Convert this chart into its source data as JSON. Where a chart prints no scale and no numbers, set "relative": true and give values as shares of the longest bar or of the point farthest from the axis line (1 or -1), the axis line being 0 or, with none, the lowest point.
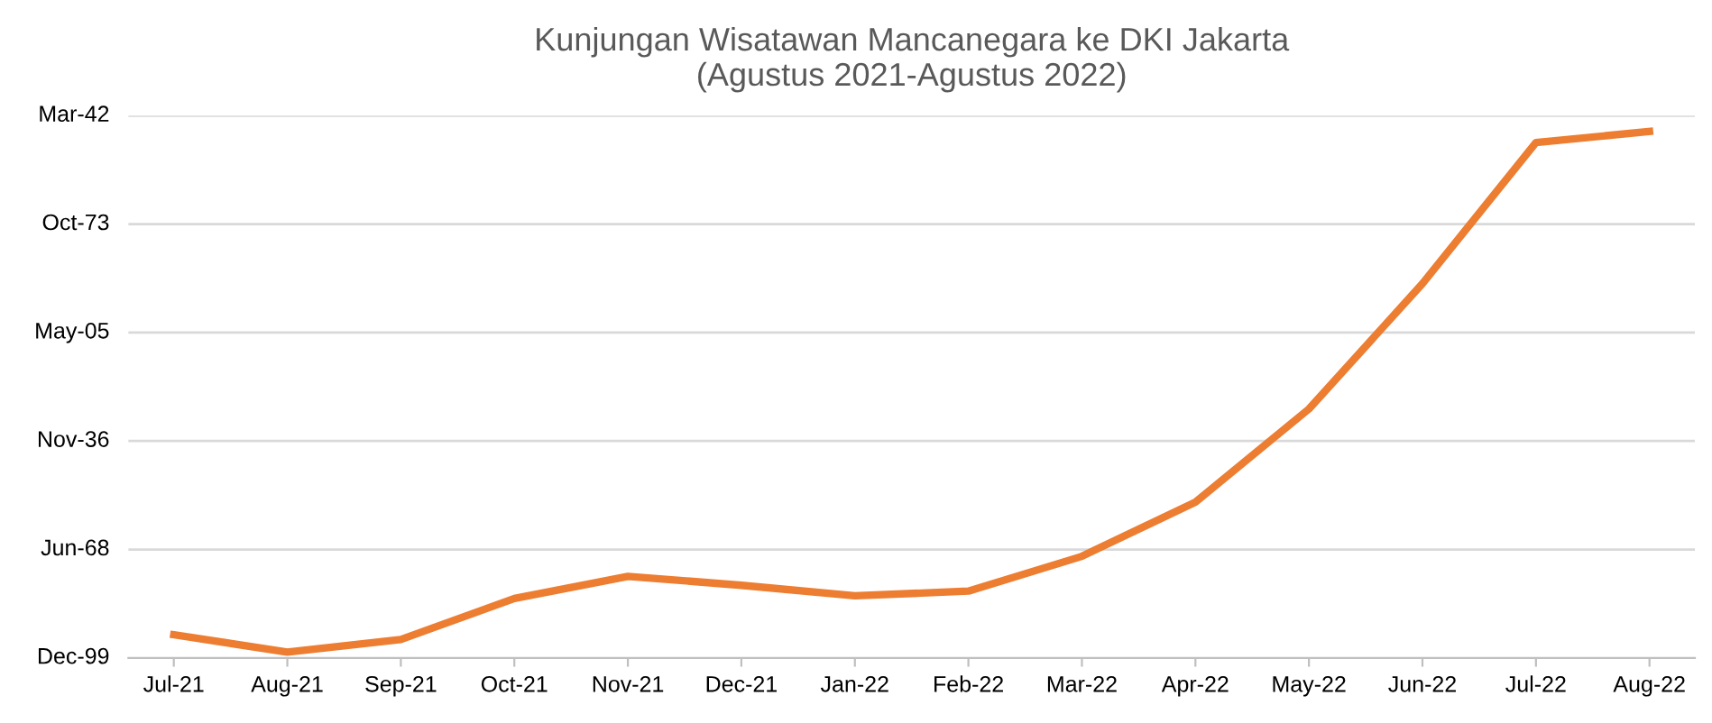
{
  "chart_data": {
    "type": "line",
    "title": "Kunjungan Wisatawan Mancanegara ke DKI Jakarta\n(Agustus 2021-Agustus 2022)",
    "categories": [
      "Jul-21",
      "Aug-21",
      "Sep-21",
      "Oct-21",
      "Nov-21",
      "Dec-21",
      "Jan-22",
      "Feb-22",
      "Mar-22",
      "Apr-22",
      "May-22",
      "Jun-22",
      "Jul-22",
      "Aug-22"
    ],
    "series": [
      {
        "color": "#ed7d31",
        "values": [
          0.044,
          0.011,
          0.035,
          0.113,
          0.155,
          0.138,
          0.118,
          0.127,
          0.193,
          0.296,
          0.473,
          0.711,
          0.979,
          1
        ]
      }
    ],
    "relative": true,
    "annotations": [
      "Dec-99",
      "Jun-68",
      "Nov-36",
      "May-05",
      "Oct-73",
      "Mar-42"
    ],
    "grid": "y",
    "marker": "none",
    "line_style": "solid"
  }
}
